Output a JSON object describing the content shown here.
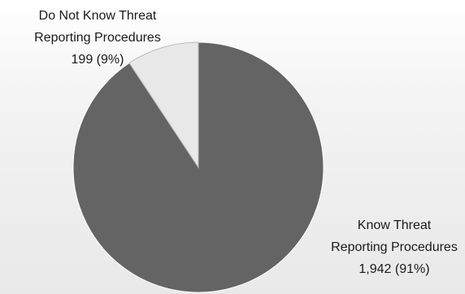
{
  "chart_data": {
    "type": "pie",
    "slices": [
      {
        "label_lines": [
          "Know Threat",
          "Reporting Procedures"
        ],
        "value": 1942,
        "value_text": "1,942 (91%)",
        "percent": 91,
        "color": "#646464"
      },
      {
        "label_lines": [
          "Do Not Know Threat",
          "Reporting Procedures"
        ],
        "value": 199,
        "value_text": "199 (9%)",
        "percent": 9,
        "color": "#e8e8e8"
      }
    ],
    "start_angle": "12 o'clock",
    "direction": "counterclockwise-first-small-slice",
    "stroke_color": "#ffffff"
  }
}
